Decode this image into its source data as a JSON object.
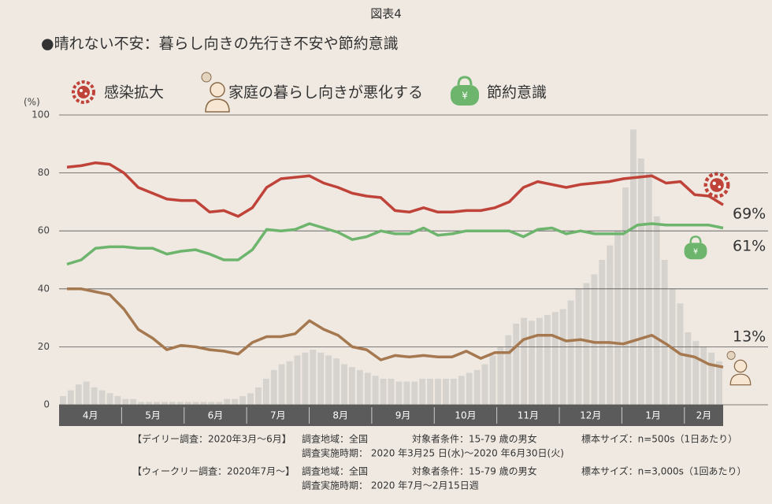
{
  "chart_data": {
    "type": "line",
    "title": "図表4",
    "subtitle": "●晴れない不安：暮らし向きの先行き不安や節約意識",
    "y_unit": "(%)",
    "ylim": [
      0,
      100
    ],
    "yticks": [
      0,
      20,
      40,
      60,
      80,
      100
    ],
    "grid": true,
    "months": [
      "4月",
      "5月",
      "6月",
      "7月",
      "8月",
      "9月",
      "10月",
      "11月",
      "12月",
      "1月",
      "2月"
    ],
    "series": [
      {
        "name": "感染拡大",
        "color": "#c0433a",
        "end_label": "69%",
        "values": [
          82,
          82.5,
          83.5,
          83,
          80,
          75,
          73,
          71,
          70.5,
          70.5,
          66.5,
          67,
          65,
          68,
          75,
          78,
          78.5,
          79,
          76.5,
          75,
          73,
          72,
          71.5,
          67,
          66.5,
          68,
          66.5,
          66.5,
          67,
          67,
          68,
          70,
          75,
          77,
          76,
          75,
          76,
          76.5,
          77,
          78,
          78.5,
          79,
          76.5,
          77,
          72.5,
          72,
          69
        ]
      },
      {
        "name": "家庭の暮らし向きが悪化する",
        "color": "#a5784f",
        "end_label": "13%",
        "values": [
          40,
          40,
          39,
          38,
          33,
          26,
          23,
          19,
          20.5,
          20,
          19,
          18.5,
          17.5,
          21.5,
          23.5,
          23.5,
          24.5,
          29,
          26,
          24,
          20,
          19,
          15.5,
          17,
          16.5,
          17,
          16.5,
          16.5,
          18.5,
          16,
          18,
          18,
          22.5,
          24,
          24,
          22,
          22.5,
          21.5,
          21.5,
          21,
          22.5,
          24,
          21,
          17.5,
          16.5,
          14,
          13
        ]
      },
      {
        "name": "節約意識",
        "color": "#6db56d",
        "end_label": "61%",
        "values": [
          48.5,
          50,
          54,
          54.5,
          54.5,
          54,
          54,
          52,
          53,
          53.5,
          52,
          50,
          50,
          53.5,
          60.5,
          60,
          60.5,
          62.5,
          61,
          59.5,
          57,
          58,
          60,
          59,
          59,
          61,
          58.5,
          59,
          60,
          60,
          60,
          60,
          58,
          60.5,
          61,
          59,
          60,
          59,
          59,
          59,
          62,
          62.5,
          62,
          62,
          62,
          62,
          61
        ]
      }
    ],
    "background_bars": {
      "color": "#cfcdcb",
      "values": [
        3,
        5,
        7,
        8,
        6,
        5,
        4,
        3,
        2,
        2,
        1,
        1,
        1,
        1,
        1,
        1,
        1,
        1,
        1,
        1,
        1,
        2,
        2,
        3,
        4,
        6,
        9,
        12,
        14,
        15,
        17,
        18,
        19,
        18,
        17,
        16,
        14,
        13,
        12,
        11,
        10,
        9,
        9,
        8,
        8,
        8,
        9,
        9,
        9,
        9,
        9,
        10,
        11,
        12,
        14,
        17,
        20,
        24,
        28,
        30,
        29,
        30,
        31,
        32,
        33,
        36,
        40,
        42,
        45,
        50,
        55,
        60,
        75,
        95,
        85,
        80,
        65,
        50,
        40,
        35,
        25,
        22,
        20,
        18,
        15
      ]
    },
    "notes": [
      [
        "【デイリー調査：2020年3月～6月】",
        "調査地域：全国",
        "対象者条件：15-79 歳の男女",
        "標本サイズ：n=500s（1日あたり）"
      ],
      [
        "調査実施時期： 2020 年3月25 日(水)～2020 年6月30日(火)"
      ],
      [
        "【ウィークリー調査：2020年7月～】",
        "調査地域：全国",
        "対象者条件：15-79 歳の男女",
        "標本サイズ：n=3,000s（1回あたり）"
      ],
      [
        "調査実施時期： 2020 年7月～2月15日週"
      ]
    ]
  }
}
